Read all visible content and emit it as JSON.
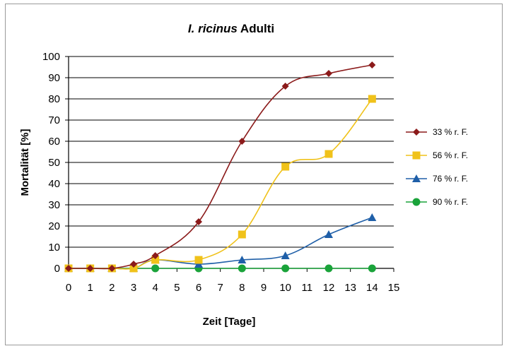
{
  "chart_data": {
    "type": "line",
    "title_italic": "I. ricinus",
    "title_rest": " Adulti",
    "xlabel": "Zeit [Tage]",
    "ylabel": "Mortalität [%]",
    "xlim": [
      0,
      15
    ],
    "ylim": [
      0,
      100
    ],
    "x_ticks": [
      0,
      1,
      2,
      3,
      4,
      5,
      6,
      7,
      8,
      9,
      10,
      11,
      12,
      13,
      14,
      15
    ],
    "y_ticks": [
      0,
      10,
      20,
      30,
      40,
      50,
      60,
      70,
      80,
      90,
      100
    ],
    "grid": "horizontal",
    "legend_position": "right",
    "series": [
      {
        "name": "33 % r. F.",
        "color": "#8b1a1a",
        "marker": "diamond",
        "x": [
          0,
          1,
          2,
          3,
          4,
          6,
          8,
          10,
          12,
          14
        ],
        "y": [
          0,
          0,
          0,
          2,
          6,
          22,
          60,
          86,
          92,
          96
        ]
      },
      {
        "name": "56 % r. F.",
        "color": "#f0c21a",
        "marker": "square",
        "x": [
          0,
          1,
          2,
          3,
          4,
          6,
          8,
          10,
          12,
          14
        ],
        "y": [
          0,
          0,
          0,
          0,
          4,
          4,
          16,
          48,
          54,
          80
        ]
      },
      {
        "name": "76 % r. F.",
        "color": "#1f5fa8",
        "marker": "triangle",
        "x": [
          0,
          1,
          2,
          3,
          4,
          6,
          8,
          10,
          12,
          14
        ],
        "y": [
          0,
          0,
          0,
          0,
          4,
          2,
          4,
          6,
          16,
          24
        ]
      },
      {
        "name": "90 % r. F.",
        "color": "#1aa33a",
        "marker": "circle",
        "x": [
          0,
          1,
          2,
          3,
          4,
          6,
          8,
          10,
          12,
          14
        ],
        "y": [
          0,
          0,
          0,
          0,
          0,
          0,
          0,
          0,
          0,
          0
        ]
      }
    ]
  }
}
